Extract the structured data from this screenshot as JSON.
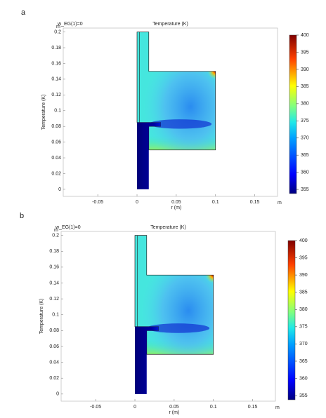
{
  "chart_data": [
    {
      "type": "field",
      "panel_label": "a",
      "subtitle": "w_EG(1)=0",
      "title": "Temperature (K)",
      "x_label": "r (m)",
      "y_label": "Temperature (K)",
      "x_unit": "m",
      "y_unit": "m",
      "xlim": [
        -0.094,
        0.179
      ],
      "ylim": [
        -0.009,
        0.205
      ],
      "xticks": [
        -0.05,
        0,
        0.05,
        0.1,
        0.15
      ],
      "yticks": [
        0,
        0.02,
        0.04,
        0.06,
        0.08,
        0.1,
        0.12,
        0.14,
        0.16,
        0.18,
        0.2
      ],
      "clim": [
        353.8,
        400
      ],
      "cticks": [
        355,
        360,
        365,
        370,
        375,
        380,
        385,
        390,
        395,
        400
      ]
    },
    {
      "type": "field",
      "panel_label": "b",
      "subtitle": "w_EG(1)=0",
      "title": "Temperature (K)",
      "x_label": "r (m)",
      "y_label": "Temperature (K)",
      "x_unit": "m",
      "y_unit": "m",
      "xlim": [
        -0.094,
        0.179
      ],
      "ylim": [
        -0.009,
        0.205
      ],
      "xticks": [
        -0.05,
        0,
        0.05,
        0.1,
        0.15
      ],
      "yticks": [
        0,
        0.02,
        0.04,
        0.06,
        0.08,
        0.1,
        0.12,
        0.14,
        0.16,
        0.18,
        0.2
      ],
      "clim": [
        353.8,
        400
      ],
      "cticks": [
        355,
        360,
        365,
        370,
        375,
        380,
        385,
        390,
        395,
        400
      ]
    }
  ]
}
